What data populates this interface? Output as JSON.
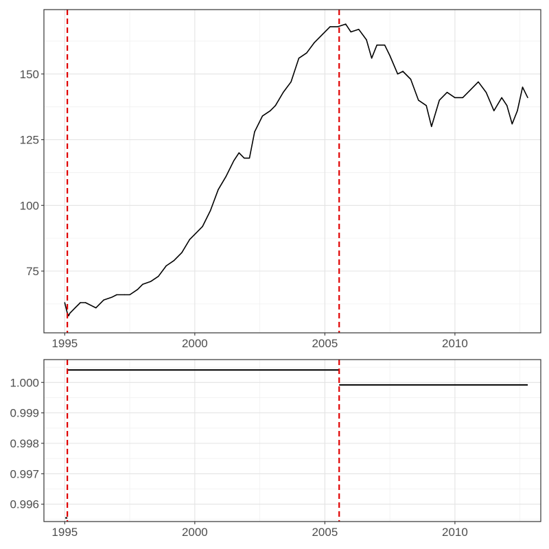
{
  "chart_data": [
    {
      "type": "line",
      "title": "",
      "xlabel": "",
      "ylabel": "",
      "xlim": [
        1994.2,
        2013.3
      ],
      "ylim": [
        51.5,
        174.5
      ],
      "x_ticks": [
        1995,
        2000,
        2005,
        2010
      ],
      "y_ticks": [
        75,
        100,
        125,
        150
      ],
      "x_tick_labels": [
        "1995",
        "2000",
        "2005",
        "2010"
      ],
      "y_tick_labels": [
        "75",
        "100",
        "125",
        "150"
      ],
      "grid": true,
      "vlines": [
        1995.1,
        2005.55
      ],
      "vline_color": "#e00000",
      "line_color": "#000000",
      "series": [
        {
          "x": [
            1995.0,
            1995.1,
            1995.15,
            1995.2,
            1995.4,
            1995.6,
            1995.8,
            1996.0,
            1996.2,
            1996.5,
            1996.8,
            1997.0,
            1997.3,
            1997.5,
            1997.8,
            1998.0,
            1998.3,
            1998.6,
            1998.9,
            1999.2,
            1999.5,
            1999.8,
            2000.0,
            2000.3,
            2000.6,
            2000.9,
            2001.2,
            2001.5,
            2001.7,
            2001.9,
            2002.1,
            2002.3,
            2002.6,
            2002.9,
            2003.1,
            2003.4,
            2003.7,
            2004.0,
            2004.3,
            2004.6,
            2004.9,
            2005.2,
            2005.5,
            2005.8,
            2006.0,
            2006.3,
            2006.6,
            2006.8,
            2007.0,
            2007.3,
            2007.5,
            2007.8,
            2008.0,
            2008.3,
            2008.6,
            2008.9,
            2009.1,
            2009.4,
            2009.7,
            2010.0,
            2010.3,
            2010.6,
            2010.9,
            2011.2,
            2011.5,
            2011.8,
            2012.0,
            2012.2,
            2012.4,
            2012.6,
            2012.8
          ],
          "y": [
            63,
            59,
            58,
            59,
            61,
            63,
            63,
            62,
            61,
            64,
            65,
            66,
            66,
            66,
            68,
            70,
            71,
            73,
            77,
            79,
            82,
            87,
            89,
            92,
            98,
            106,
            111,
            117,
            120,
            118,
            118,
            128,
            134,
            136,
            138,
            143,
            147,
            156,
            158,
            162,
            165,
            168,
            168,
            169,
            166,
            167,
            163,
            156,
            161,
            161,
            157,
            150,
            151,
            148,
            140,
            138,
            130,
            140,
            143,
            141,
            141,
            144,
            147,
            143,
            136,
            141,
            138,
            131,
            136,
            145,
            141
          ]
        }
      ]
    },
    {
      "type": "line",
      "title": "",
      "xlabel": "",
      "ylabel": "",
      "xlim": [
        1994.2,
        2013.3
      ],
      "ylim": [
        0.99543,
        1.00075
      ],
      "x_ticks": [
        1995,
        2000,
        2005,
        2010
      ],
      "y_ticks": [
        0.996,
        0.997,
        0.998,
        0.999,
        1.0
      ],
      "x_tick_labels": [
        "1995",
        "2000",
        "2005",
        "2010"
      ],
      "y_tick_labels": [
        "0.996",
        "0.997",
        "0.998",
        "0.999",
        "1.000"
      ],
      "grid": true,
      "vlines": [
        1995.1,
        2005.55
      ],
      "vline_color": "#e00000",
      "line_color": "#000000",
      "segments": [
        {
          "x": [
            1995.02,
            1995.1
          ],
          "y": [
            0.99555,
            0.99555
          ]
        },
        {
          "x": [
            1995.1,
            2005.55
          ],
          "y": [
            1.00041,
            1.00041
          ]
        },
        {
          "x": [
            2005.55,
            2012.8
          ],
          "y": [
            0.99992,
            0.99992
          ]
        }
      ]
    }
  ]
}
